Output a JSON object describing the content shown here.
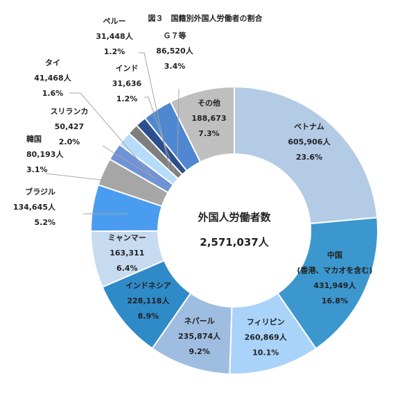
{
  "chart_data": {
    "type": "pie",
    "title": "図３　国籍別外国人労働者の割合",
    "center_label": "外国人労働者数",
    "center_value": "2,571,037人",
    "slices": [
      {
        "lines": [
          "ベトナム",
          "605,906人",
          "23.6%"
        ],
        "value": 605906,
        "pct": 23.6,
        "color": "#b4cbe6"
      },
      {
        "lines": [
          "中国",
          "(香港、マカオを含む)",
          "431,949人",
          "16.8%"
        ],
        "value": 431949,
        "pct": 16.8,
        "color": "#3b97ce"
      },
      {
        "lines": [
          "フィリピン",
          "260,869人",
          "10.1%"
        ],
        "value": 260869,
        "pct": 10.1,
        "color": "#a9d3f8"
      },
      {
        "lines": [
          "ネパール",
          "235,874人",
          "9.2%"
        ],
        "value": 235874,
        "pct": 9.2,
        "color": "#9fbde0"
      },
      {
        "lines": [
          "インドネシア",
          "228,118人",
          "8.9%"
        ],
        "value": 228118,
        "pct": 8.9,
        "color": "#2f8ac8"
      },
      {
        "lines": [
          "ミャンマー",
          "163,311",
          "6.4%"
        ],
        "value": 163311,
        "pct": 6.4,
        "color": "#c6dbf0"
      },
      {
        "lines": [
          "ブラジル",
          "134,645人",
          "5.2%"
        ],
        "value": 134645,
        "pct": 5.2,
        "color": "#4a9cf0"
      },
      {
        "lines": [
          "韓国",
          "80,193人",
          "3.1%"
        ],
        "value": 80193,
        "pct": 3.1,
        "color": "#a6a6a6"
      },
      {
        "lines": [
          "スリランカ",
          "50,427",
          "2.0%"
        ],
        "value": 50427,
        "pct": 2.0,
        "color": "#6f93d6"
      },
      {
        "lines": [
          "タイ",
          "41,468人",
          "1.6%"
        ],
        "value": 41468,
        "pct": 1.6,
        "color": "#b7dcfb"
      },
      {
        "lines": [
          "インド",
          "31,636",
          "1.2%"
        ],
        "value": 31636,
        "pct": 1.2,
        "color": "#7f7f7f"
      },
      {
        "lines": [
          "ペルー",
          "31,448人",
          "1.2%"
        ],
        "value": 31448,
        "pct": 1.2,
        "color": "#2c4f8f"
      },
      {
        "lines": [
          "Ｇ７等",
          "86,520人",
          "3.4%"
        ],
        "value": 86520,
        "pct": 3.4,
        "color": "#4f88d1"
      },
      {
        "lines": [
          "その他",
          "188,673",
          "7.3%"
        ],
        "value": 188673,
        "pct": 7.3,
        "color": "#bfbfbf"
      }
    ]
  }
}
